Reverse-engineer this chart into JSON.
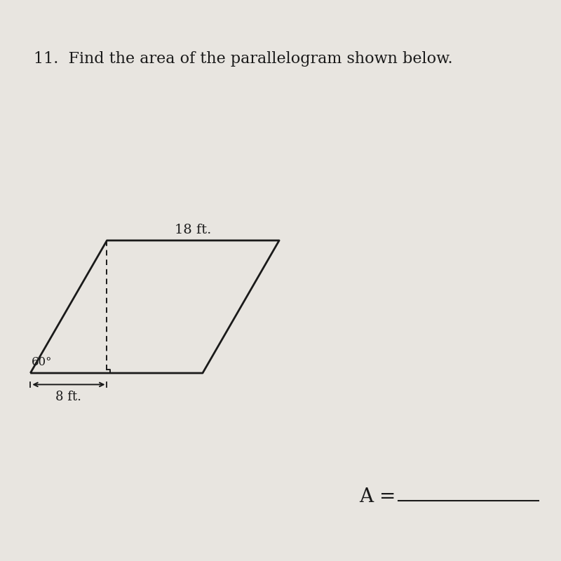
{
  "background_color": "#e8e5e0",
  "title_text": "11.  Find the area of the parallelogram shown below.",
  "title_fontsize": 16,
  "parallelogram": {
    "base_label": "18 ft.",
    "side_label": "8 ft.",
    "angle_label": "60°"
  },
  "answer_label": "A =",
  "line_color": "#1a1a1a",
  "dashed_color": "#1a1a1a",
  "small_square_size": 0.35,
  "arrow_color": "#1a1a1a"
}
